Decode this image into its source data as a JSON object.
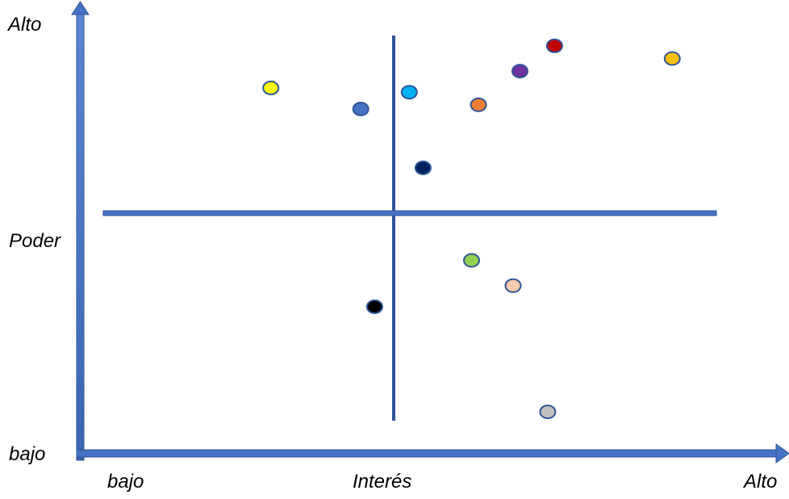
{
  "labels": {
    "y_high": "Alto",
    "y_title": "Poder",
    "y_low": "bajo",
    "x_low": "bajo",
    "x_title": "Interés",
    "x_high": "Alto"
  },
  "colors": {
    "axis": "#4472c4",
    "quadrant_lines": "#2f5597",
    "dot_outline": "#2f5597"
  },
  "chart_data": {
    "type": "scatter",
    "xlabel": "Interés",
    "ylabel": "Poder",
    "x_ticks": [
      "bajo",
      "Interés",
      "Alto"
    ],
    "y_ticks": [
      "bajo",
      "Poder",
      "Alto"
    ],
    "grid": false,
    "quadrant_dividers": {
      "x": 0.44,
      "y": 0.59
    },
    "points": [
      {
        "x": 0.27,
        "y": 0.86,
        "color": "#ffff00"
      },
      {
        "x": 0.4,
        "y": 0.81,
        "color": "#4472c4"
      },
      {
        "x": 0.47,
        "y": 0.85,
        "color": "#00b0f0"
      },
      {
        "x": 0.57,
        "y": 0.82,
        "color": "#ed7d31"
      },
      {
        "x": 0.63,
        "y": 0.9,
        "color": "#7030a0"
      },
      {
        "x": 0.68,
        "y": 0.96,
        "color": "#c00000"
      },
      {
        "x": 0.85,
        "y": 0.93,
        "color": "#ffc000"
      },
      {
        "x": 0.49,
        "y": 0.67,
        "color": "#002060"
      },
      {
        "x": 0.56,
        "y": 0.45,
        "color": "#92d050"
      },
      {
        "x": 0.62,
        "y": 0.39,
        "color": "#f8cbad"
      },
      {
        "x": 0.42,
        "y": 0.34,
        "color": "#000000"
      },
      {
        "x": 0.67,
        "y": 0.09,
        "color": "#bfbfbf"
      }
    ]
  }
}
